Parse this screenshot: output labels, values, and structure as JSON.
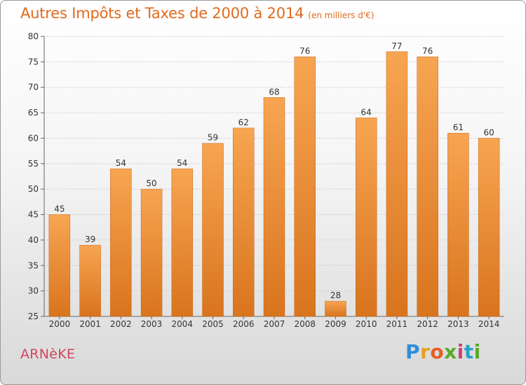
{
  "title": "Autres Impôts et Taxes de 2000 à 2014",
  "unit_note": "(en milliers d'€)",
  "city": "ARNèKE",
  "brand": "Proxiti",
  "colors": {
    "bar_light": "#f7a552",
    "bar_dark": "#d9741e",
    "grid": "#cccccc",
    "title": "#e06a1e",
    "city": "#d0455f"
  },
  "chart_data": {
    "type": "bar",
    "title": "Autres Impôts et Taxes de 2000 à 2014",
    "subtitle": "(en milliers d'€)",
    "categories": [
      "2000",
      "2001",
      "2002",
      "2003",
      "2004",
      "2005",
      "2006",
      "2007",
      "2008",
      "2009",
      "2010",
      "2011",
      "2012",
      "2013",
      "2014"
    ],
    "values": [
      45,
      39,
      54,
      50,
      54,
      59,
      62,
      68,
      76,
      28,
      64,
      77,
      76,
      61,
      60
    ],
    "ylim": [
      25,
      80
    ],
    "yticks": [
      25,
      30,
      35,
      40,
      45,
      50,
      55,
      60,
      65,
      70,
      75,
      80
    ],
    "grid": true,
    "xlabel": "",
    "ylabel": ""
  }
}
